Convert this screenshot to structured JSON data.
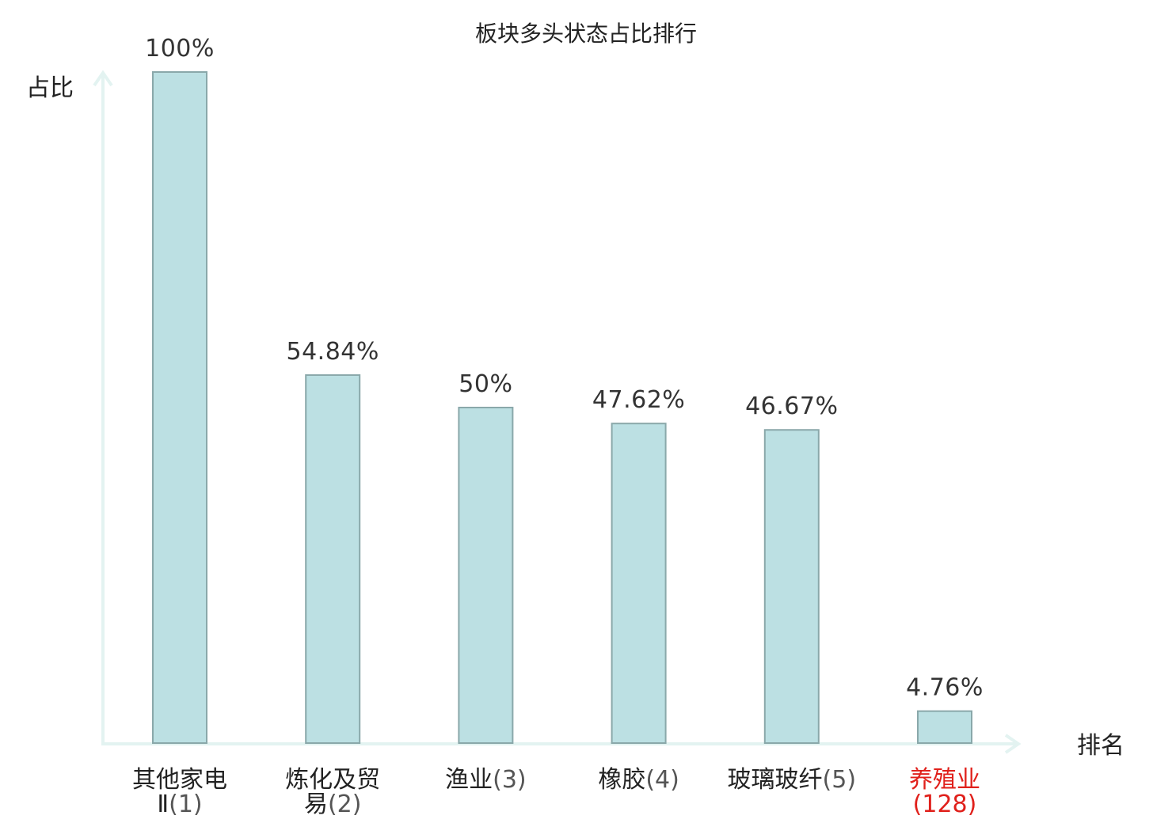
{
  "chart_data": {
    "type": "bar",
    "title": "板块多头状态占比排行",
    "ylabel": "占比",
    "xlabel": "排名",
    "ylim": [
      0,
      100
    ],
    "grid": false,
    "categories": [
      {
        "name": "其他家电Ⅱ",
        "rank": "(1)",
        "value": 100,
        "label": "100%",
        "highlight": false
      },
      {
        "name": "炼化及贸易",
        "rank": "(2)",
        "value": 54.84,
        "label": "54.84%",
        "highlight": false
      },
      {
        "name": "渔业",
        "rank": "(3)",
        "value": 50,
        "label": "50%",
        "highlight": false
      },
      {
        "name": "橡胶",
        "rank": "(4)",
        "value": 47.62,
        "label": "47.62%",
        "highlight": false
      },
      {
        "name": "玻璃玻纤",
        "rank": "(5)",
        "value": 46.67,
        "label": "46.67%",
        "highlight": false
      },
      {
        "name": "养殖业",
        "rank": "(128)",
        "value": 4.76,
        "label": "4.76%",
        "highlight": true
      }
    ],
    "colors": {
      "bar_fill": "#bce0e3",
      "bar_stroke": "#8aa8aa",
      "axis": "#e3f3f1",
      "highlight_text": "#e0201b",
      "text": "#222222"
    }
  }
}
